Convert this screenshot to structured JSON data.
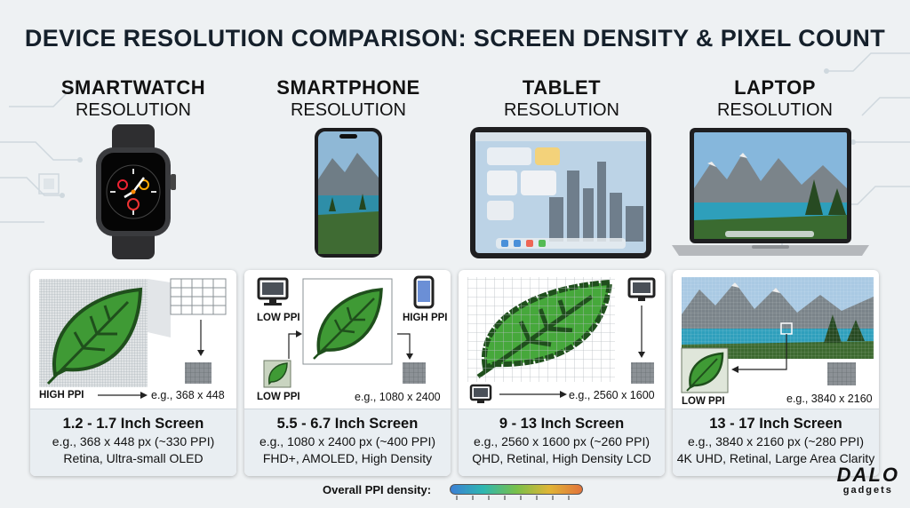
{
  "title": "DEVICE RESOLUTION COMPARISON: SCREEN DENSITY & PIXEL COUNT",
  "devices": [
    {
      "name": "SMARTWATCH",
      "sub": "RESOLUTION",
      "labels": {
        "a": "HIGH PPI",
        "example": "e.g., 368 x 448"
      },
      "size": "1.2 - 1.7 Inch Screen",
      "detail": "e.g., 368 x 448 px (~330 PPI)",
      "features": "Retina, Ultra-small OLED"
    },
    {
      "name": "SMARTPHONE",
      "sub": "RESOLUTION",
      "labels": {
        "low": "LOW PPI",
        "high": "HIGH PPI",
        "low2": "LOW PPI",
        "example": "e.g., 1080 x 2400"
      },
      "size": "5.5 - 6.7 Inch Screen",
      "detail": "e.g., 1080 x 2400 px (~400 PPI)",
      "features": "FHD+, AMOLED, High Density"
    },
    {
      "name": "TABLET",
      "sub": "RESOLUTION",
      "labels": {
        "example": "e.g., 2560 x 1600"
      },
      "size": "9 - 13 Inch Screen",
      "detail": "e.g., 2560 x 1600 px (~260 PPI)",
      "features": "QHD, Retinal, High Density LCD"
    },
    {
      "name": "LAPTOP",
      "sub": "RESOLUTION",
      "labels": {
        "low": "LOW PPI",
        "example": "e.g., 3840 x 2160"
      },
      "size": "13 - 17 Inch Screen",
      "detail": "e.g., 3840 x 2160 px (~280 PPI)",
      "features": "4K UHD, Retinal, Large Area Clarity"
    }
  ],
  "legend": {
    "label": "Overall PPI density:"
  },
  "brand": {
    "line1": "DALO",
    "line2": "gadgets"
  },
  "colors": {
    "leaf": "#3f9a35",
    "leaf_dark": "#1f4f1c",
    "title": "#15202b",
    "spec_bg": "#e9eef2"
  }
}
